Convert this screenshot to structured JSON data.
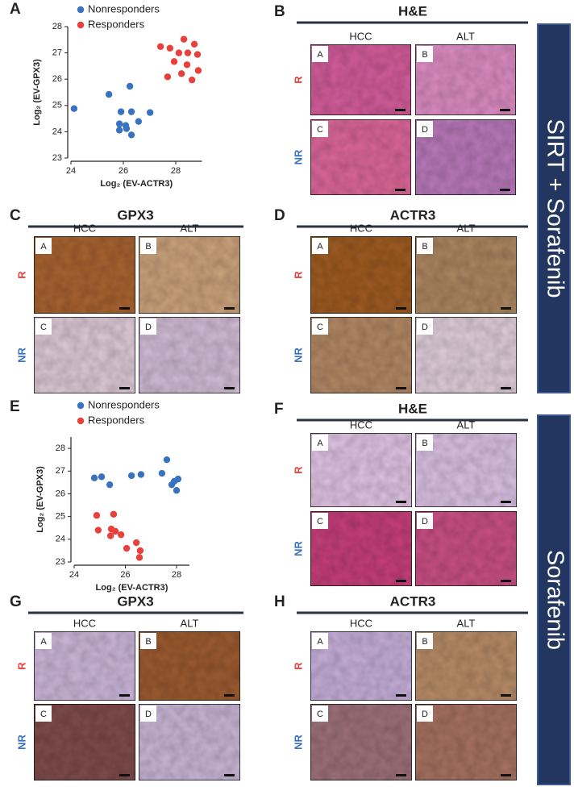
{
  "chart_data": [
    {
      "type": "scatter",
      "xlabel": "Log₂ (EV-ACTR3)",
      "ylabel": "Log₂ (EV-GPX3)",
      "xlim": [
        24,
        29
      ],
      "ylim": [
        23,
        28
      ],
      "xticks": [
        24,
        26,
        28
      ],
      "yticks": [
        23,
        24,
        25,
        26,
        27,
        28
      ],
      "series": [
        {
          "name": "Nonresponders",
          "color": "#3a72c2",
          "x": [
            24.12,
            25.45,
            26.25,
            25.91,
            26.31,
            25.85,
            26.09,
            26.58,
            27.02,
            25.85,
            26.12,
            26.31
          ],
          "values": [
            24.88,
            25.42,
            25.73,
            24.76,
            24.76,
            24.3,
            24.24,
            24.39,
            24.73,
            24.06,
            24.12,
            23.88
          ]
        },
        {
          "name": "Responders",
          "color": "#e8413b",
          "x": [
            27.42,
            28.31,
            27.78,
            28.71,
            28.12,
            28.46,
            28.83,
            27.94,
            28.43,
            28.86,
            27.69,
            28.22,
            28.62
          ],
          "values": [
            27.24,
            27.52,
            27.18,
            27.33,
            27.0,
            27.0,
            26.94,
            26.67,
            26.55,
            26.33,
            26.09,
            26.21,
            25.97
          ]
        }
      ]
    },
    {
      "type": "scatter",
      "xlabel": "Log₂ (EV-ACTR3)",
      "ylabel": "Log₂ (EV-GPX3)",
      "xlim": [
        24,
        28.5
      ],
      "ylim": [
        23,
        28.5
      ],
      "xticks": [
        24,
        26,
        28
      ],
      "yticks": [
        23,
        24,
        25,
        26,
        27,
        28
      ],
      "series": [
        {
          "name": "Nonresponders",
          "color": "#3a72c2",
          "x": [
            24.79,
            25.07,
            25.39,
            26.24,
            26.61,
            27.62,
            27.43,
            27.91,
            28.06,
            27.81,
            28.0
          ],
          "values": [
            26.7,
            26.75,
            26.4,
            26.8,
            26.85,
            27.5,
            26.9,
            26.55,
            26.65,
            26.4,
            26.15
          ]
        },
        {
          "name": "Responders",
          "color": "#e8413b",
          "x": [
            24.88,
            25.54,
            24.94,
            25.45,
            25.61,
            25.83,
            25.42,
            26.05,
            26.43,
            26.58,
            26.55
          ],
          "values": [
            25.05,
            25.1,
            24.4,
            24.45,
            24.35,
            24.2,
            24.15,
            23.6,
            23.85,
            23.5,
            23.2
          ]
        }
      ]
    }
  ],
  "figure": {
    "scatter_letters": [
      "A",
      "E"
    ],
    "panels": [
      {
        "letter": "B",
        "title": "H&E",
        "columns": [
          "HCC",
          "ALT"
        ],
        "rows": [
          "R",
          "NR"
        ],
        "images": [
          "A",
          "B",
          "C",
          "D"
        ]
      },
      {
        "letter": "C",
        "title": "GPX3",
        "columns": [
          "HCC",
          "ALT"
        ],
        "rows": [
          "R",
          "NR"
        ],
        "images": [
          "A",
          "B",
          "C",
          "D"
        ]
      },
      {
        "letter": "D",
        "title": "ACTR3",
        "columns": [
          "HCC",
          "ALT"
        ],
        "rows": [
          "R",
          "NR"
        ],
        "images": [
          "A",
          "B",
          "C",
          "D"
        ]
      },
      {
        "letter": "F",
        "title": "H&E",
        "columns": [
          "HCC",
          "ALT"
        ],
        "rows": [
          "R",
          "NR"
        ],
        "images": [
          "A",
          "B",
          "C",
          "D"
        ]
      },
      {
        "letter": "G",
        "title": "GPX3",
        "columns": [
          "HCC",
          "ALT"
        ],
        "rows": [
          "R",
          "NR"
        ],
        "images": [
          "A",
          "B",
          "C",
          "D"
        ]
      },
      {
        "letter": "H",
        "title": "ACTR3",
        "columns": [
          "HCC",
          "ALT"
        ],
        "rows": [
          "R",
          "NR"
        ],
        "images": [
          "A",
          "B",
          "C",
          "D"
        ]
      }
    ],
    "banners": [
      "SIRT + Sorafenib",
      "Sorafenib"
    ]
  }
}
